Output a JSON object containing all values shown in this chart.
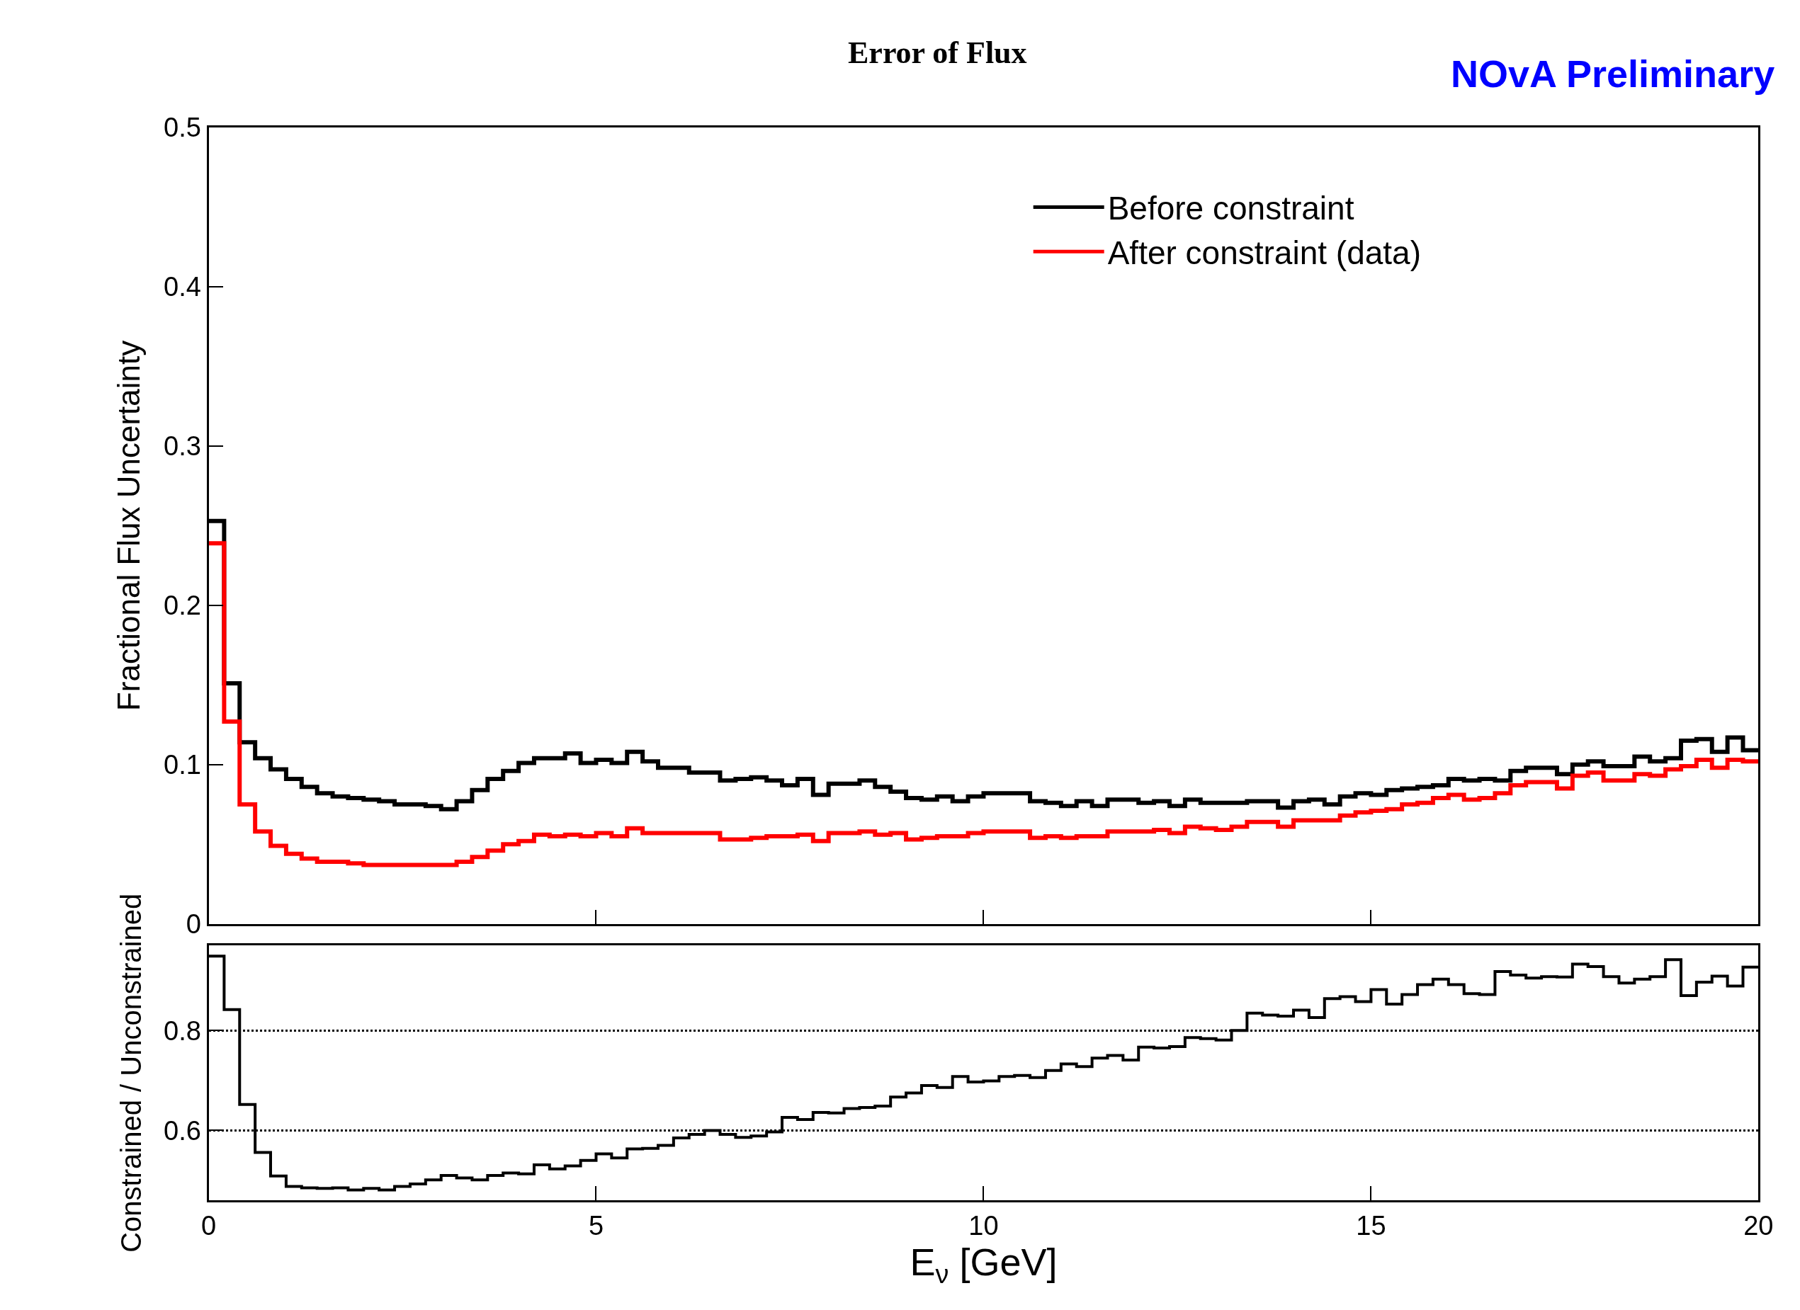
{
  "chart_data": [
    {
      "type": "histogram",
      "title": "Error of Flux",
      "ylabel": "Fractional Flux Uncertainty",
      "annotations": [
        "NOvA Preliminary"
      ],
      "bins": [
        0,
        0.2,
        0.4,
        0.6,
        0.8,
        1,
        1.2,
        1.4,
        1.6,
        1.8,
        2,
        2.2,
        2.4,
        2.6,
        2.8,
        3,
        3.2,
        3.4,
        3.6,
        3.8,
        4,
        4.2,
        4.4,
        4.6,
        4.8,
        5,
        5.2,
        5.4,
        5.6,
        5.8,
        6,
        6.2,
        6.4,
        6.6,
        6.8,
        7,
        7.2,
        7.4,
        7.6,
        7.8,
        8,
        8.2,
        8.4,
        8.6,
        8.8,
        9,
        9.2,
        9.4,
        9.6,
        9.8,
        10,
        10.2,
        10.4,
        10.6,
        10.8,
        11,
        11.2,
        11.4,
        11.6,
        11.8,
        12,
        12.2,
        12.4,
        12.6,
        12.8,
        13,
        13.2,
        13.4,
        13.6,
        13.8,
        14,
        14.2,
        14.4,
        14.6,
        14.8,
        15,
        15.2,
        15.4,
        15.6,
        15.8,
        16,
        16.2,
        16.4,
        16.6,
        16.8,
        17,
        17.2,
        17.4,
        17.6,
        17.8,
        18,
        18.2,
        18.4,
        18.6,
        18.8,
        19,
        19.2,
        19.4,
        19.6,
        19.8,
        20
      ],
      "series": [
        {
          "name": "Before constraint",
          "color": "#000000",
          "values": [
            0.253,
            0.151,
            0.114,
            0.104,
            0.097,
            0.091,
            0.086,
            0.082,
            0.08,
            0.079,
            0.078,
            0.077,
            0.075,
            0.075,
            0.074,
            0.072,
            0.077,
            0.084,
            0.091,
            0.096,
            0.101,
            0.104,
            0.104,
            0.107,
            0.101,
            0.103,
            0.101,
            0.108,
            0.102,
            0.098,
            0.098,
            0.095,
            0.095,
            0.09,
            0.091,
            0.092,
            0.09,
            0.087,
            0.091,
            0.081,
            0.088,
            0.088,
            0.09,
            0.086,
            0.083,
            0.079,
            0.078,
            0.08,
            0.077,
            0.08,
            0.082,
            0.082,
            0.082,
            0.077,
            0.076,
            0.074,
            0.077,
            0.074,
            0.078,
            0.078,
            0.076,
            0.077,
            0.074,
            0.078,
            0.076,
            0.076,
            0.076,
            0.077,
            0.077,
            0.073,
            0.077,
            0.078,
            0.075,
            0.08,
            0.082,
            0.081,
            0.084,
            0.085,
            0.086,
            0.087,
            0.091,
            0.09,
            0.091,
            0.09,
            0.096,
            0.098,
            0.098,
            0.094,
            0.1,
            0.102,
            0.099,
            0.099,
            0.105,
            0.102,
            0.104,
            0.115,
            0.116,
            0.108,
            0.117,
            0.109
          ]
        },
        {
          "name": "After constraint (data)",
          "color": "#ff0000",
          "values": [
            0.239,
            0.127,
            0.075,
            0.058,
            0.049,
            0.044,
            0.041,
            0.039,
            0.039,
            0.038,
            0.037,
            0.037,
            0.037,
            0.037,
            0.037,
            0.037,
            0.039,
            0.042,
            0.046,
            0.05,
            0.052,
            0.056,
            0.055,
            0.056,
            0.055,
            0.057,
            0.055,
            0.06,
            0.057,
            0.057,
            0.057,
            0.057,
            0.057,
            0.053,
            0.053,
            0.054,
            0.055,
            0.055,
            0.056,
            0.052,
            0.057,
            0.057,
            0.058,
            0.056,
            0.057,
            0.053,
            0.054,
            0.055,
            0.055,
            0.057,
            0.058,
            0.058,
            0.058,
            0.054,
            0.055,
            0.054,
            0.055,
            0.055,
            0.058,
            0.058,
            0.058,
            0.059,
            0.057,
            0.061,
            0.06,
            0.059,
            0.061,
            0.064,
            0.064,
            0.061,
            0.065,
            0.065,
            0.065,
            0.068,
            0.07,
            0.071,
            0.072,
            0.075,
            0.076,
            0.079,
            0.081,
            0.078,
            0.079,
            0.082,
            0.087,
            0.089,
            0.089,
            0.085,
            0.093,
            0.095,
            0.09,
            0.09,
            0.094,
            0.093,
            0.097,
            0.099,
            0.103,
            0.098,
            0.103,
            0.102
          ]
        }
      ],
      "xlim": [
        0,
        20
      ],
      "xticks": [
        0,
        5,
        10,
        15,
        20
      ],
      "ylim": [
        0,
        0.5
      ],
      "yticks": [
        0,
        0.1,
        0.2,
        0.3,
        0.4,
        0.5
      ],
      "tick_labels": "y",
      "legend": "top right"
    },
    {
      "type": "histogram",
      "xlabel": "E$_{ν}$ [GeV]",
      "ylabel": "Constrained / Unconstrained",
      "bins": [
        0,
        0.2,
        0.4,
        0.6,
        0.8,
        1,
        1.2,
        1.4,
        1.6,
        1.8,
        2,
        2.2,
        2.4,
        2.6,
        2.8,
        3,
        3.2,
        3.4,
        3.6,
        3.8,
        4,
        4.2,
        4.4,
        4.6,
        4.8,
        5,
        5.2,
        5.4,
        5.6,
        5.8,
        6,
        6.2,
        6.4,
        6.6,
        6.8,
        7,
        7.2,
        7.4,
        7.6,
        7.8,
        8,
        8.2,
        8.4,
        8.6,
        8.8,
        9,
        9.2,
        9.4,
        9.6,
        9.8,
        10,
        10.2,
        10.4,
        10.6,
        10.8,
        11,
        11.2,
        11.4,
        11.6,
        11.8,
        12,
        12.2,
        12.4,
        12.6,
        12.8,
        13,
        13.2,
        13.4,
        13.6,
        13.8,
        14,
        14.2,
        14.4,
        14.6,
        14.8,
        15,
        15.2,
        15.4,
        15.6,
        15.8,
        16,
        16.2,
        16.4,
        16.6,
        16.8,
        17,
        17.2,
        17.4,
        17.6,
        17.8,
        18,
        18.2,
        18.4,
        18.6,
        18.8,
        19,
        19.2,
        19.4,
        19.6,
        19.8,
        20
      ],
      "series": [
        {
          "color": "#000000",
          "values": [
            0.949,
            0.842,
            0.652,
            0.556,
            0.509,
            0.488,
            0.485,
            0.484,
            0.485,
            0.481,
            0.484,
            0.481,
            0.488,
            0.493,
            0.501,
            0.51,
            0.505,
            0.501,
            0.51,
            0.515,
            0.513,
            0.531,
            0.523,
            0.529,
            0.54,
            0.553,
            0.545,
            0.563,
            0.564,
            0.57,
            0.585,
            0.592,
            0.6,
            0.592,
            0.586,
            0.589,
            0.597,
            0.626,
            0.622,
            0.636,
            0.635,
            0.644,
            0.646,
            0.649,
            0.667,
            0.675,
            0.69,
            0.686,
            0.708,
            0.697,
            0.699,
            0.708,
            0.71,
            0.706,
            0.72,
            0.733,
            0.728,
            0.745,
            0.75,
            0.741,
            0.767,
            0.765,
            0.768,
            0.786,
            0.784,
            0.781,
            0.8,
            0.835,
            0.831,
            0.829,
            0.841,
            0.826,
            0.864,
            0.868,
            0.858,
            0.882,
            0.853,
            0.872,
            0.892,
            0.903,
            0.892,
            0.874,
            0.872,
            0.918,
            0.911,
            0.905,
            0.908,
            0.907,
            0.933,
            0.928,
            0.908,
            0.895,
            0.903,
            0.908,
            0.942,
            0.87,
            0.897,
            0.909,
            0.889,
            0.927
          ]
        }
      ],
      "xlim": [
        0,
        20
      ],
      "xticks": [
        0,
        5,
        10,
        15,
        20
      ],
      "ylim": [
        0.46,
        0.97
      ],
      "yticks": [
        0.6,
        0.8
      ],
      "grid": "y"
    }
  ]
}
